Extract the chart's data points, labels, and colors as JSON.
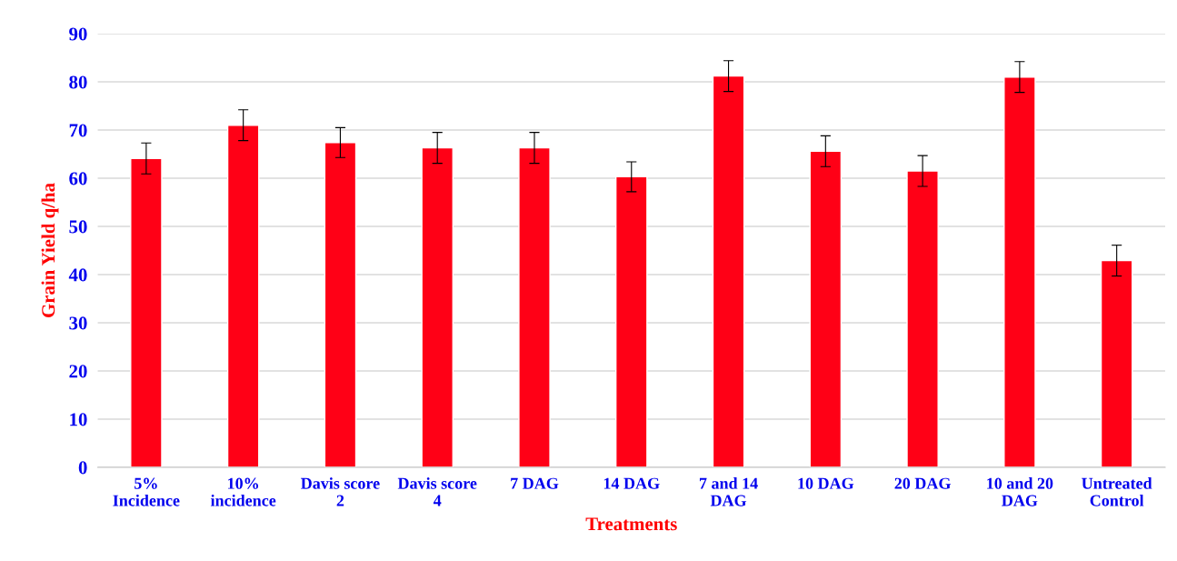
{
  "chart_data": {
    "type": "bar",
    "xlabel": "Treatments",
    "ylabel": "Grain Yield q/ha",
    "categories": [
      "5%\nIncidence",
      "10%\nincidence",
      "Davis score\n2",
      "Davis score\n4",
      "7 DAG",
      "14 DAG",
      "7 and 14\nDAG",
      "10 DAG",
      "20 DAG",
      "10 and 20\nDAG",
      "Untreated\nControl"
    ],
    "values": [
      64.1,
      71.0,
      67.4,
      66.3,
      66.3,
      60.3,
      81.2,
      65.6,
      61.5,
      81.0,
      42.9
    ],
    "errors": [
      3.2,
      3.2,
      3.1,
      3.2,
      3.2,
      3.1,
      3.2,
      3.2,
      3.2,
      3.2,
      3.2
    ],
    "color": "#ff0016",
    "ylim": [
      0,
      90
    ],
    "yticks": [
      0,
      10,
      20,
      30,
      40,
      50,
      60,
      70,
      80,
      90
    ],
    "grid": "y",
    "legend": false
  }
}
